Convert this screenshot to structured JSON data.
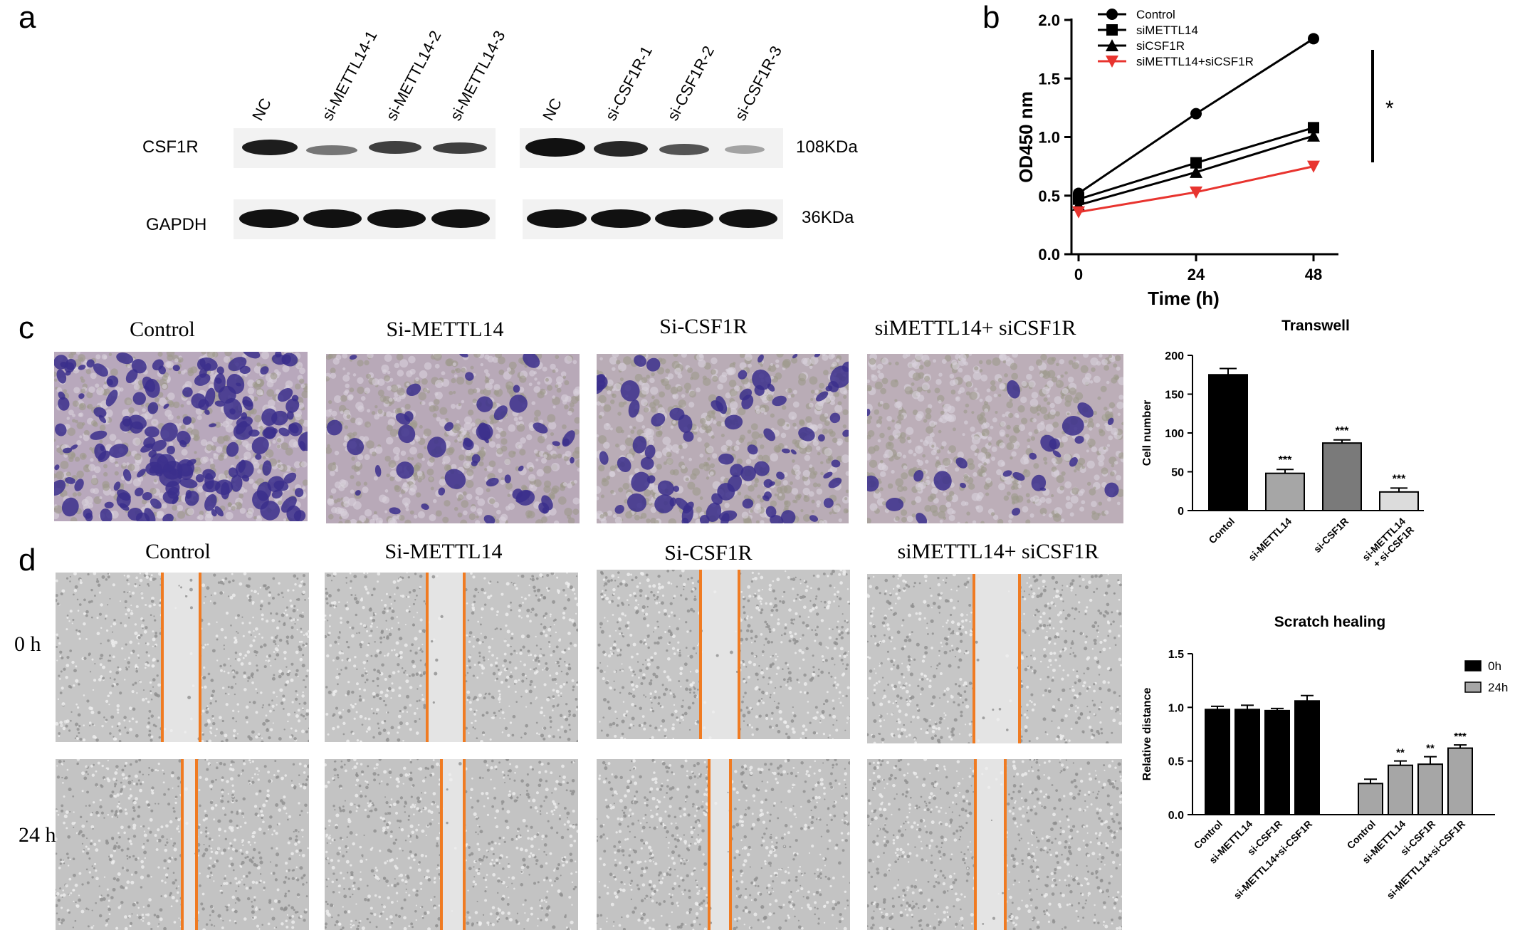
{
  "panels": {
    "a": "a",
    "b": "b",
    "c": "c",
    "d": "d"
  },
  "blot": {
    "lanes_left": [
      "NC",
      "si-METTL14-1",
      "si-METTL14-2",
      "si-METTL14-3"
    ],
    "lanes_right": [
      "NC",
      "si-CSF1R-1",
      "si-CSF1R-2",
      "si-CSF1R-3"
    ],
    "rows": [
      {
        "protein": "CSF1R",
        "size": "108KDa"
      },
      {
        "protein": "GAPDH",
        "size": "36KDa"
      }
    ]
  },
  "transwell_images": {
    "conditions": [
      "Control",
      "Si-METTL14",
      "Si-CSF1R",
      "siMETTL14+ siCSF1R"
    ]
  },
  "scratch_images": {
    "conditions": [
      "Control",
      "Si-METTL14",
      "Si-CSF1R",
      "siMETTL14+ siCSF1R"
    ],
    "times": [
      "0 h",
      "24 h"
    ]
  },
  "chart_data": [
    {
      "type": "line",
      "xlabel": "Time (h)",
      "ylabel": "OD450 nm",
      "x": [
        0,
        24,
        48
      ],
      "xticks": [
        "0",
        "24",
        "48"
      ],
      "ylim": [
        0,
        2.0
      ],
      "yticks": [
        "0.0",
        "0.5",
        "1.0",
        "1.5",
        "2.0"
      ],
      "legend_position": "top-left",
      "significance": "*",
      "series": [
        {
          "name": "Control",
          "values": [
            0.52,
            1.2,
            1.84
          ],
          "color": "#000000",
          "marker": "circle"
        },
        {
          "name": "siMETTL14",
          "values": [
            0.47,
            0.78,
            1.08
          ],
          "color": "#000000",
          "marker": "square"
        },
        {
          "name": "siCSF1R",
          "values": [
            0.42,
            0.7,
            1.01
          ],
          "color": "#000000",
          "marker": "triangle-up"
        },
        {
          "name": "siMETTL14+siCSF1R",
          "values": [
            0.36,
            0.53,
            0.75
          ],
          "color": "#e8342f",
          "marker": "triangle-down"
        }
      ]
    },
    {
      "type": "bar",
      "title": "Transwell",
      "ylabel": "Cell number",
      "categories": [
        "Contol",
        "si-METTL14",
        "si-CSF1R",
        "si-METTL14\n+ si-CSF1R"
      ],
      "values": [
        175,
        48,
        87,
        24
      ],
      "errors": [
        8,
        5,
        4,
        5
      ],
      "significance": [
        "",
        "***",
        "***",
        "***"
      ],
      "colors": [
        "#000000",
        "#a6a6a6",
        "#7a7a7a",
        "#dcdcdc"
      ],
      "ylim": [
        0,
        200
      ],
      "yticks": [
        "0",
        "50",
        "100",
        "150",
        "200"
      ]
    },
    {
      "type": "bar",
      "title": "Scratch healing",
      "ylabel": "Relative distance",
      "categories": [
        "Control",
        "si-METTL14",
        "si-CSF1R",
        "si-METTL14+si-CSF1R"
      ],
      "ylim": [
        0,
        1.5
      ],
      "yticks": [
        "0.0",
        "0.5",
        "1.0",
        "1.5"
      ],
      "legend_position": "top-right",
      "series": [
        {
          "name": "0h",
          "values": [
            0.98,
            0.98,
            0.97,
            1.06
          ],
          "errors": [
            0.03,
            0.04,
            0.02,
            0.05
          ],
          "significance": [
            "",
            "",
            "",
            ""
          ],
          "color": "#000000"
        },
        {
          "name": "24h",
          "values": [
            0.29,
            0.46,
            0.47,
            0.62
          ],
          "errors": [
            0.04,
            0.04,
            0.07,
            0.03
          ],
          "significance": [
            "",
            "**",
            "**",
            "***"
          ],
          "color": "#a6a6a6"
        }
      ]
    }
  ]
}
